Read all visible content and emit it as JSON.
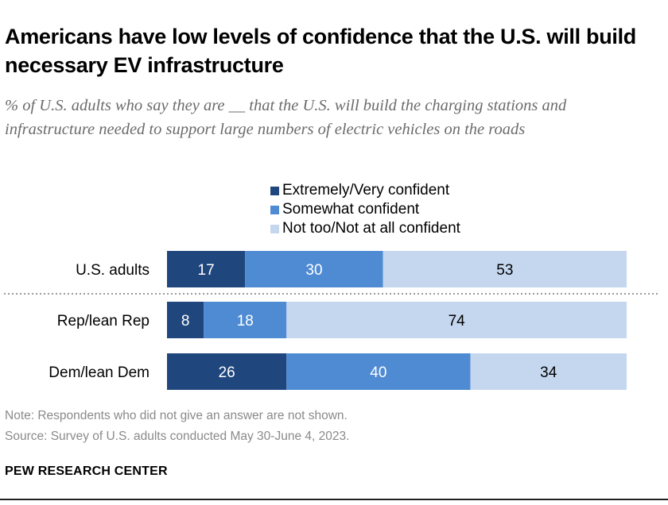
{
  "chart_data": {
    "type": "bar",
    "orientation": "horizontal",
    "stacked": true,
    "title": "Americans have low levels of confidence that the U.S. will build necessary EV infrastructure",
    "subtitle": "% of U.S. adults who say they are __ that the U.S. will build the charging stations and infrastructure needed to support large numbers of electric vehicles on the roads",
    "categories": [
      "U.S. adults",
      "Rep/lean Rep",
      "Dem/lean Dem"
    ],
    "series": [
      {
        "name": "Extremely/Very confident",
        "color": "#1f477d",
        "values": [
          17,
          8,
          26
        ]
      },
      {
        "name": "Somewhat confident",
        "color": "#4f8bd3",
        "values": [
          30,
          18,
          40
        ]
      },
      {
        "name": "Not too/Not at all confident",
        "color": "#c5d7ef",
        "values": [
          53,
          74,
          34
        ]
      }
    ],
    "xlim": [
      0,
      100
    ],
    "grid": false,
    "legend": "top"
  },
  "note": "Note: Respondents who did not give an answer are not shown.",
  "source": "Source: Survey of U.S. adults conducted May 30-June 4, 2023.",
  "brand": "PEW RESEARCH CENTER"
}
